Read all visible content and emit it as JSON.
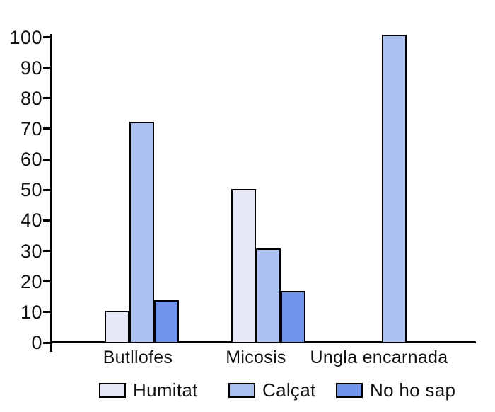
{
  "chart_data": {
    "type": "bar",
    "title": "",
    "xlabel": "",
    "ylabel": "",
    "categories": [
      "Butllofes",
      "Micosis",
      "Ungla encarnada"
    ],
    "series": [
      {
        "name": "Humitat",
        "color": "#e4e8f7",
        "values": [
          10,
          50,
          0
        ]
      },
      {
        "name": "Calçat",
        "color": "#aec2f1",
        "values": [
          72,
          30.5,
          100.5
        ]
      },
      {
        "name": "No ho sap",
        "color": "#7295eb",
        "values": [
          13.5,
          16.5,
          0
        ]
      }
    ],
    "ylim": [
      0,
      100
    ],
    "ytick_step": 10,
    "ytick_labels": [
      "0",
      "10",
      "20",
      "30",
      "40",
      "50",
      "60",
      "70",
      "80",
      "90",
      "100"
    ],
    "grid": false,
    "legend_position": "bottom",
    "bar_outline_color": "#000000",
    "axis_color": "#000000"
  }
}
